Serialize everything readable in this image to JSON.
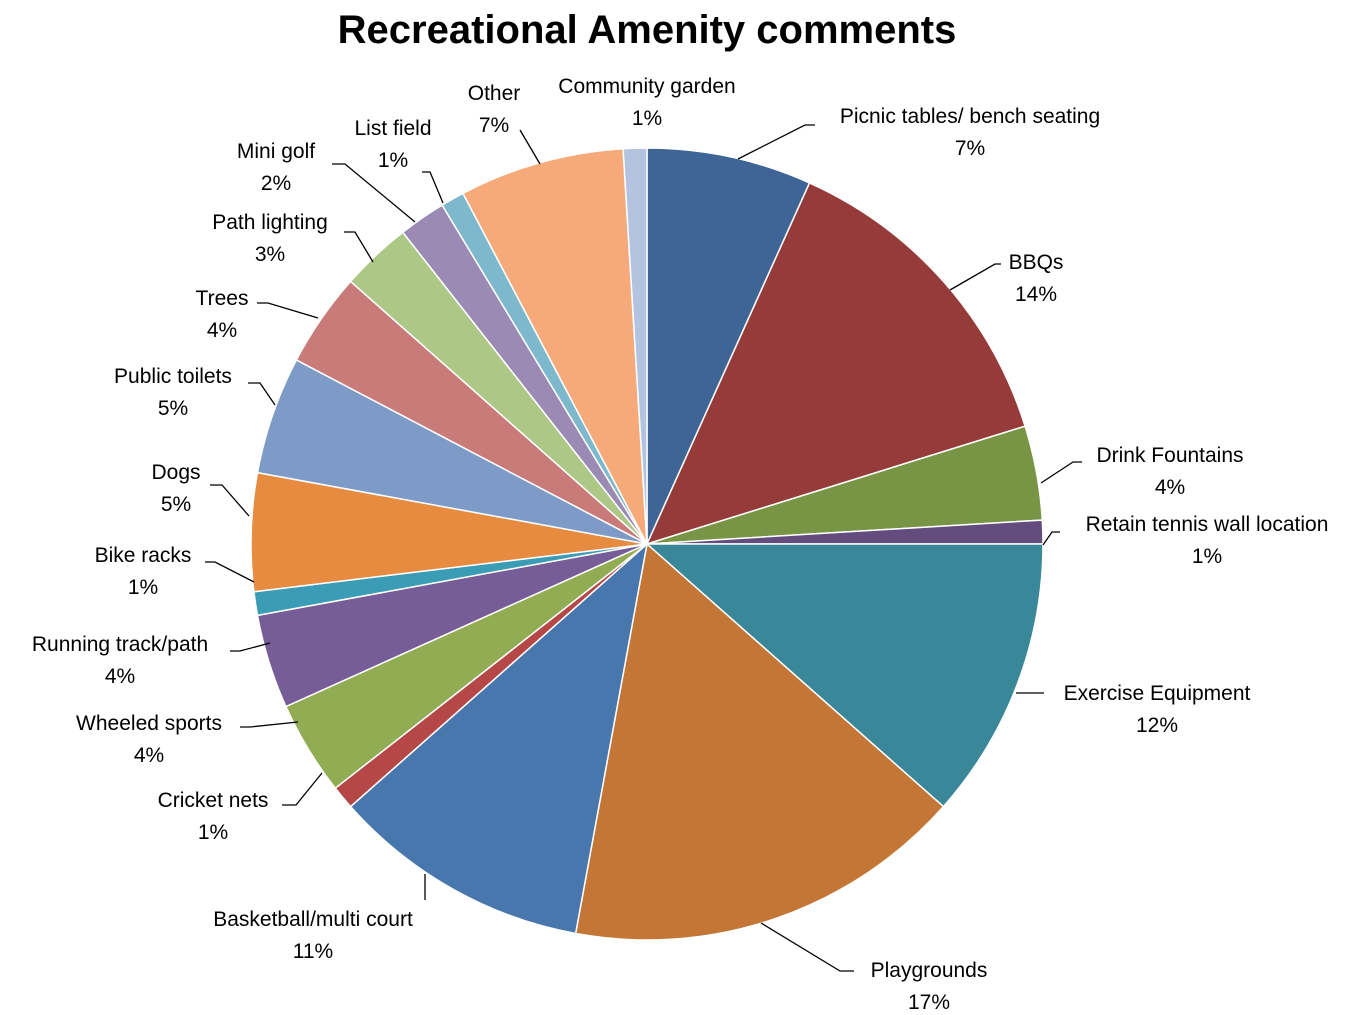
{
  "chart_data": {
    "type": "pie",
    "title": "Recreational Amenity comments",
    "start": "top, clockwise",
    "slices": [
      {
        "label": "Picnic tables/ bench seating",
        "value": 7,
        "pct": "7%",
        "color": "#3e6596"
      },
      {
        "label": "BBQs",
        "value": 14,
        "pct": "14%",
        "color": "#953b3a"
      },
      {
        "label": "Drink Fountains",
        "value": 4,
        "pct": "4%",
        "color": "#789445"
      },
      {
        "label": "Retain tennis wall location",
        "value": 1,
        "pct": "1%",
        "color": "#634c7e"
      },
      {
        "label": "Exercise Equipment",
        "value": 12,
        "pct": "12%",
        "color": "#3a8799"
      },
      {
        "label": "Playgrounds",
        "value": 17,
        "pct": "17%",
        "color": "#c37636"
      },
      {
        "label": "Basketball/multi court",
        "value": 11,
        "pct": "11%",
        "color": "#4877ae"
      },
      {
        "label": "Cricket nets",
        "value": 1,
        "pct": "1%",
        "color": "#b54846"
      },
      {
        "label": "Wheeled sports",
        "value": 4,
        "pct": "4%",
        "color": "#91ac53"
      },
      {
        "label": "Running track/path",
        "value": 4,
        "pct": "4%",
        "color": "#775d98"
      },
      {
        "label": "Bike racks",
        "value": 1,
        "pct": "1%",
        "color": "#3b9cb5"
      },
      {
        "label": "Dogs",
        "value": 5,
        "pct": "5%",
        "color": "#e68b40"
      },
      {
        "label": "Public toilets",
        "value": 5,
        "pct": "5%",
        "color": "#7e9bc8"
      },
      {
        "label": "Trees",
        "value": 4,
        "pct": "4%",
        "color": "#c97b79"
      },
      {
        "label": "Path lighting",
        "value": 3,
        "pct": "3%",
        "color": "#adc786"
      },
      {
        "label": "Mini golf",
        "value": 2,
        "pct": "2%",
        "color": "#9b8ab4"
      },
      {
        "label": "List field",
        "value": 1,
        "pct": "1%",
        "color": "#7db8cd"
      },
      {
        "label": "Other",
        "value": 7,
        "pct": "7%",
        "color": "#f6aa79"
      },
      {
        "label": "Community garden",
        "value": 1,
        "pct": "1%",
        "color": "#b4c4e0"
      }
    ]
  }
}
